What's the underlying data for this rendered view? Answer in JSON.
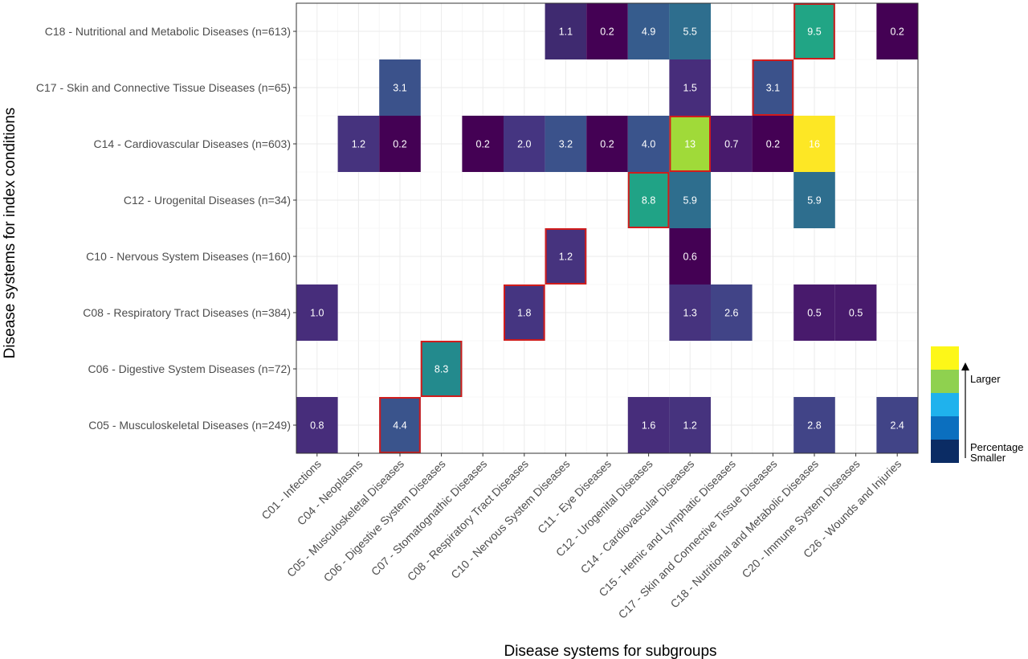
{
  "chart_data": {
    "type": "heatmap",
    "xlabel": "Disease systems for subgroups",
    "ylabel": "Disease systems for index conditions",
    "x_categories": [
      "C01 - Infections",
      "C04 - Neoplasms",
      "C05 - Musculoskeletal Diseases",
      "C06 - Digestive System Diseases",
      "C07 - Stomatognathic Diseases",
      "C08 - Respiratory Tract Diseases",
      "C10 - Nervous System Diseases",
      "C11 - Eye Diseases",
      "C12 - Urogenital Diseases",
      "C14 - Cardiovascular Diseases",
      "C15 - Hemic and Lymphatic Diseases",
      "C17 - Skin and Connective Tissue Diseases",
      "C18 - Nutritional and Metabolic Diseases",
      "C20 - Immune System Diseases",
      "C26 - Wounds and Injuries"
    ],
    "y_categories": [
      "C18 - Nutritional and Metabolic Diseases (n=613)",
      "C17 - Skin and Connective Tissue Diseases (n=65)",
      "C14 - Cardiovascular Diseases (n=603)",
      "C12 - Urogenital Diseases (n=34)",
      "C10 - Nervous System Diseases (n=160)",
      "C08 - Respiratory Tract Diseases (n=384)",
      "C06 - Digestive System Diseases (n=72)",
      "C05 - Musculoskeletal Diseases (n=249)"
    ],
    "cells": [
      {
        "row": 0,
        "col": 6,
        "value": 1.1,
        "label": "1.1",
        "color": "#3f2a70",
        "highlight": false
      },
      {
        "row": 0,
        "col": 7,
        "value": 0.2,
        "label": "0.2",
        "color": "#440154",
        "highlight": false
      },
      {
        "row": 0,
        "col": 8,
        "value": 4.9,
        "label": "4.9",
        "color": "#365c8d",
        "highlight": false
      },
      {
        "row": 0,
        "col": 9,
        "value": 5.5,
        "label": "5.5",
        "color": "#2e6e8e",
        "highlight": false
      },
      {
        "row": 0,
        "col": 12,
        "value": 9.5,
        "label": "9.5",
        "color": "#21a585",
        "highlight": true
      },
      {
        "row": 0,
        "col": 14,
        "value": 0.2,
        "label": "0.2",
        "color": "#440154",
        "highlight": false
      },
      {
        "row": 1,
        "col": 2,
        "value": 3.1,
        "label": "3.1",
        "color": "#3b528b",
        "highlight": false
      },
      {
        "row": 1,
        "col": 9,
        "value": 1.5,
        "label": "1.5",
        "color": "#472d7b",
        "highlight": false
      },
      {
        "row": 1,
        "col": 11,
        "value": 3.1,
        "label": "3.1",
        "color": "#3b528b",
        "highlight": true
      },
      {
        "row": 2,
        "col": 1,
        "value": 1.2,
        "label": "1.2",
        "color": "#46337e",
        "highlight": false
      },
      {
        "row": 2,
        "col": 2,
        "value": 0.2,
        "label": "0.2",
        "color": "#440154",
        "highlight": false
      },
      {
        "row": 2,
        "col": 4,
        "value": 0.2,
        "label": "0.2",
        "color": "#440154",
        "highlight": false
      },
      {
        "row": 2,
        "col": 5,
        "value": 2.0,
        "label": "2.0",
        "color": "#453581",
        "highlight": false
      },
      {
        "row": 2,
        "col": 6,
        "value": 3.2,
        "label": "3.2",
        "color": "#3b528b",
        "highlight": false
      },
      {
        "row": 2,
        "col": 7,
        "value": 0.2,
        "label": "0.2",
        "color": "#440154",
        "highlight": false
      },
      {
        "row": 2,
        "col": 8,
        "value": 4.0,
        "label": "4.0",
        "color": "#3a548c",
        "highlight": false
      },
      {
        "row": 2,
        "col": 9,
        "value": 13,
        "label": "13",
        "color": "#a0da39",
        "highlight": true
      },
      {
        "row": 2,
        "col": 10,
        "value": 0.7,
        "label": "0.7",
        "color": "#481a6c",
        "highlight": false
      },
      {
        "row": 2,
        "col": 11,
        "value": 0.2,
        "label": "0.2",
        "color": "#440154",
        "highlight": false
      },
      {
        "row": 2,
        "col": 12,
        "value": 16,
        "label": "16",
        "color": "#fde725",
        "highlight": false
      },
      {
        "row": 3,
        "col": 8,
        "value": 8.8,
        "label": "8.8",
        "color": "#20a386",
        "highlight": true
      },
      {
        "row": 3,
        "col": 9,
        "value": 5.9,
        "label": "5.9",
        "color": "#2e6e8e",
        "highlight": false
      },
      {
        "row": 3,
        "col": 12,
        "value": 5.9,
        "label": "5.9",
        "color": "#2e6e8e",
        "highlight": false
      },
      {
        "row": 4,
        "col": 6,
        "value": 1.2,
        "label": "1.2",
        "color": "#46337e",
        "highlight": true
      },
      {
        "row": 4,
        "col": 9,
        "value": 0.6,
        "label": "0.6",
        "color": "#440154",
        "highlight": false
      },
      {
        "row": 5,
        "col": 0,
        "value": 1.0,
        "label": "1.0",
        "color": "#472d7b",
        "highlight": false
      },
      {
        "row": 5,
        "col": 5,
        "value": 1.8,
        "label": "1.8",
        "color": "#453581",
        "highlight": true
      },
      {
        "row": 5,
        "col": 9,
        "value": 1.3,
        "label": "1.3",
        "color": "#46337e",
        "highlight": false
      },
      {
        "row": 5,
        "col": 10,
        "value": 2.6,
        "label": "2.6",
        "color": "#414487",
        "highlight": false
      },
      {
        "row": 5,
        "col": 12,
        "value": 0.5,
        "label": "0.5",
        "color": "#481a6c",
        "highlight": false
      },
      {
        "row": 5,
        "col": 13,
        "value": 0.5,
        "label": "0.5",
        "color": "#481a6c",
        "highlight": false
      },
      {
        "row": 6,
        "col": 3,
        "value": 8.3,
        "label": "8.3",
        "color": "#238a8d",
        "highlight": true
      },
      {
        "row": 7,
        "col": 0,
        "value": 0.8,
        "label": "0.8",
        "color": "#472d7b",
        "highlight": false
      },
      {
        "row": 7,
        "col": 2,
        "value": 4.4,
        "label": "4.4",
        "color": "#3a548c",
        "highlight": true
      },
      {
        "row": 7,
        "col": 8,
        "value": 1.6,
        "label": "1.6",
        "color": "#472d7b",
        "highlight": false
      },
      {
        "row": 7,
        "col": 9,
        "value": 1.2,
        "label": "1.2",
        "color": "#46337e",
        "highlight": false
      },
      {
        "row": 7,
        "col": 12,
        "value": 2.8,
        "label": "2.8",
        "color": "#414487",
        "highlight": false
      },
      {
        "row": 7,
        "col": 14,
        "value": 2.4,
        "label": "2.4",
        "color": "#414487",
        "highlight": false
      }
    ],
    "highlight_color": "#d01c1c",
    "grid": true,
    "legend": {
      "placement": "bottom-right",
      "title_lines": [
        "Percentage",
        "Smaller"
      ],
      "larger_label": "Larger",
      "swatches_top_to_bottom": [
        "#fdf718",
        "#8fd14f",
        "#1fb2ed",
        "#0b6fbf",
        "#0b2c64"
      ]
    }
  }
}
